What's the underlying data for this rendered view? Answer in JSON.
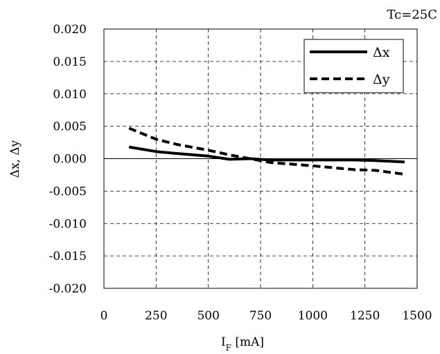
{
  "chart_data": {
    "type": "line",
    "annotation": "Tc=25C",
    "xlabel": "I",
    "xlabel_sub": "F",
    "xlabel_unit": " [mA]",
    "ylabel": "Δx, Δy",
    "xlim": [
      0,
      1500
    ],
    "ylim": [
      -0.02,
      0.02
    ],
    "xticks": [
      0,
      250,
      500,
      750,
      1000,
      1250,
      1500
    ],
    "xtick_labels": [
      "0",
      "250",
      "500",
      "750",
      "1000",
      "1250",
      "1500"
    ],
    "yticks": [
      0.02,
      0.015,
      0.01,
      0.005,
      0.0,
      -0.005,
      -0.01,
      -0.015,
      -0.02
    ],
    "ytick_labels": [
      "0.020",
      "0.015",
      "0.010",
      "0.005",
      "0.000",
      "-0.005",
      "-0.010",
      "-0.015",
      "-0.020"
    ],
    "grid": true,
    "legend_position": "top-right",
    "series": [
      {
        "name": "Δx",
        "style": "solid",
        "x": [
          120,
          250,
          350,
          500,
          600,
          700,
          800,
          1000,
          1200,
          1300,
          1440
        ],
        "y": [
          0.0018,
          0.0011,
          0.0008,
          0.0004,
          -0.0001,
          0.0,
          -0.0002,
          -0.0002,
          -0.0002,
          -0.0003,
          -0.0005
        ]
      },
      {
        "name": "Δy",
        "style": "dashed",
        "x": [
          120,
          250,
          350,
          500,
          600,
          700,
          800,
          1000,
          1200,
          1300,
          1440
        ],
        "y": [
          0.0047,
          0.003,
          0.0022,
          0.0013,
          0.0006,
          0.0,
          -0.0006,
          -0.0011,
          -0.0017,
          -0.0018,
          -0.0024
        ]
      }
    ]
  }
}
